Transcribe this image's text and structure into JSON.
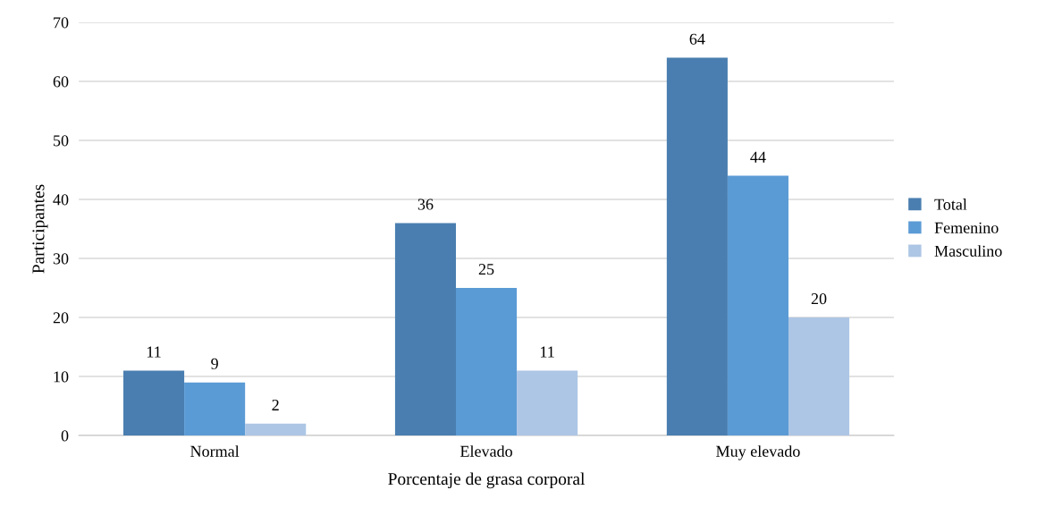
{
  "chart_data": {
    "type": "bar",
    "xlabel": "Porcentaje de grasa corporal",
    "ylabel": "Participantes",
    "categories": [
      "Normal",
      "Elevado",
      "Muy elevado"
    ],
    "series": [
      {
        "name": "Total",
        "color": "#4a7eb0",
        "values": [
          11,
          36,
          64
        ]
      },
      {
        "name": "Femenino",
        "color": "#5b9bd5",
        "values": [
          9,
          25,
          44
        ]
      },
      {
        "name": "Masculino",
        "color": "#adc6e5",
        "values": [
          2,
          11,
          20
        ]
      }
    ],
    "ylim": [
      0,
      70
    ],
    "yticks": [
      0,
      10,
      20,
      30,
      40,
      50,
      60,
      70
    ],
    "grid": "y",
    "legend": "right",
    "data_labels": true
  }
}
